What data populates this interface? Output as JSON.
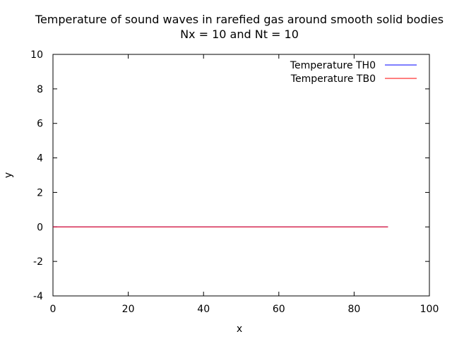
{
  "chart_data": {
    "type": "line",
    "title": "Temperature of sound waves in rarefied gas around smooth solid bodies",
    "subtitle": "Nx = 10 and Nt = 10",
    "xlabel": "x",
    "ylabel": "y",
    "xlim": [
      0,
      100
    ],
    "ylim": [
      -4,
      10
    ],
    "x_ticks": [
      0,
      20,
      40,
      60,
      80,
      100
    ],
    "y_ticks": [
      -4,
      -2,
      0,
      2,
      4,
      6,
      8,
      10
    ],
    "grid": false,
    "legend_position": "top-right",
    "series": [
      {
        "name": "Temperature TH0",
        "color": "#0000ff",
        "x": [
          0,
          89
        ],
        "y": [
          0,
          0
        ]
      },
      {
        "name": "Temperature TB0",
        "color": "#ff0000",
        "x": [
          0,
          89
        ],
        "y": [
          0,
          0
        ]
      }
    ]
  }
}
